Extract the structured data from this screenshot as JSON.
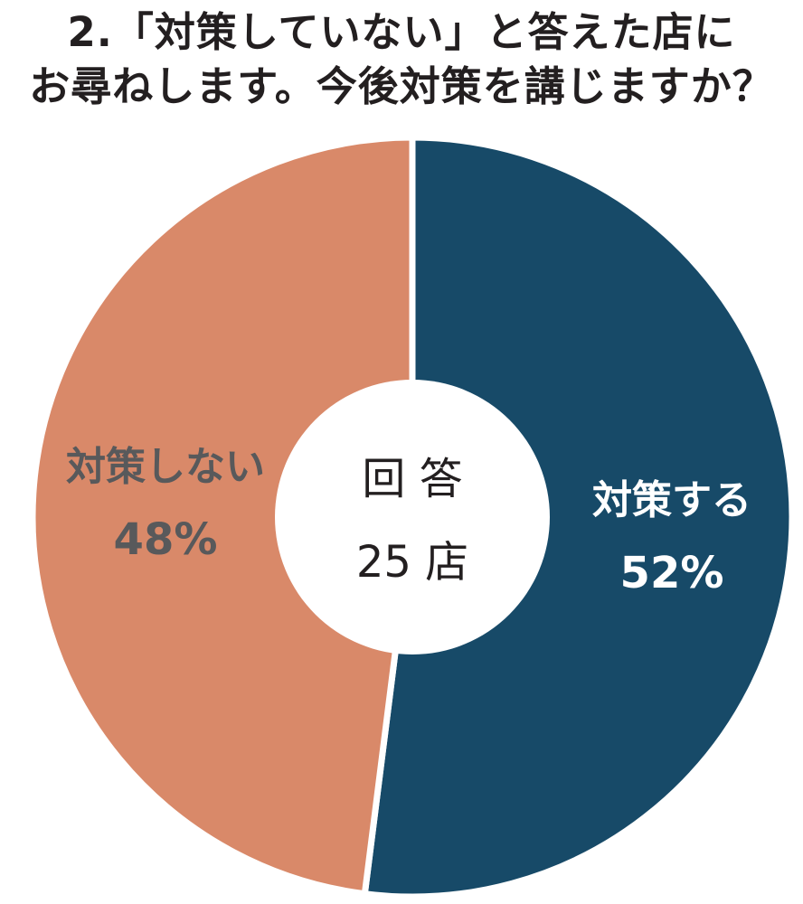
{
  "title": {
    "line1": "2.「対策していない」と答えた店に",
    "line2": "お尋ねします。今後対策を講じますか？"
  },
  "chart_data": {
    "type": "pie",
    "title": "2.「対策していない」と答えた店にお尋ねします。今後対策を講じますか？",
    "categories": [
      "対策する",
      "対策しない"
    ],
    "values": [
      52,
      48
    ],
    "value_labels": [
      "52%",
      "48%"
    ],
    "colors": [
      "#174a68",
      "#d98969"
    ],
    "label_colors": [
      "#ffffff",
      "#58595b"
    ],
    "center_label": {
      "line1": "回 答",
      "line2": "25 店"
    }
  }
}
